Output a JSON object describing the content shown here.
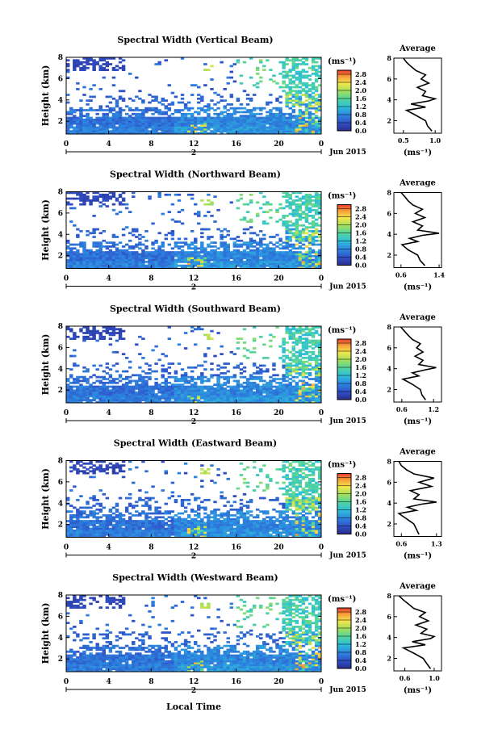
{
  "xlabel_bottom": "Local Time",
  "date_label": "Jun 2015",
  "colorbar": {
    "unit": "(ms⁻¹)",
    "ticks": [
      "0.0",
      "0.4",
      "0.8",
      "1.2",
      "1.6",
      "2.0",
      "2.4",
      "2.8"
    ],
    "range": [
      0,
      3.0
    ],
    "stops": [
      "#2a2d8c",
      "#2f52c8",
      "#2d86e0",
      "#2fc0d8",
      "#55d59a",
      "#a6e05a",
      "#f2e64a",
      "#f7a33b",
      "#e8392a"
    ]
  },
  "x_ticks": [
    "0",
    "4",
    "8",
    "12",
    "16",
    "20",
    "0"
  ],
  "x_sub_label": "2",
  "y_ticks": [
    "2",
    "4",
    "6",
    "8"
  ],
  "y_label": "Height (km)",
  "avg_title": "Average",
  "avg_unit": "(ms⁻¹)",
  "chart_data": [
    {
      "type": "heatmap",
      "title": "Spectral Width (Vertical Beam)",
      "xlim": [
        0,
        24
      ],
      "ylim": [
        0.8,
        8
      ],
      "profile": {
        "title": "Average",
        "xticks": [
          "0.5",
          "1.0"
        ],
        "xlim": [
          0.35,
          1.1
        ],
        "height": [
          1.0,
          1.5,
          2.0,
          2.5,
          3.0,
          3.3,
          3.6,
          3.9,
          4.1,
          4.4,
          4.8,
          5.2,
          5.6,
          6.0,
          6.4,
          6.8,
          7.2,
          7.6,
          8.0
        ],
        "value": [
          0.95,
          0.88,
          0.85,
          0.7,
          0.55,
          0.85,
          0.62,
          0.9,
          1.0,
          0.8,
          0.85,
          0.72,
          0.9,
          0.78,
          0.85,
          0.7,
          0.62,
          0.55,
          0.5
        ]
      }
    },
    {
      "type": "heatmap",
      "title": "Spectral Width (Northward Beam)",
      "xlim": [
        0,
        24
      ],
      "ylim": [
        0.8,
        8
      ],
      "profile": {
        "title": "Average",
        "xticks": [
          "0.6",
          "1.4"
        ],
        "xlim": [
          0.45,
          1.45
        ],
        "height": [
          1.0,
          1.5,
          2.0,
          2.5,
          3.0,
          3.3,
          3.6,
          3.9,
          4.1,
          4.4,
          4.8,
          5.2,
          5.6,
          6.0,
          6.4,
          6.8,
          7.2,
          7.6,
          8.0
        ],
        "value": [
          1.1,
          1.0,
          0.95,
          0.75,
          0.62,
          0.95,
          0.78,
          1.05,
          1.4,
          0.95,
          1.05,
          0.85,
          1.1,
          0.9,
          1.05,
          0.85,
          0.75,
          0.68,
          0.6
        ]
      }
    },
    {
      "type": "heatmap",
      "title": "Spectral Width (Southward Beam)",
      "xlim": [
        0,
        24
      ],
      "ylim": [
        0.8,
        8
      ],
      "profile": {
        "title": "Average",
        "xticks": [
          "0.6",
          "1.2"
        ],
        "xlim": [
          0.45,
          1.35
        ],
        "height": [
          1.0,
          1.5,
          2.0,
          2.5,
          3.0,
          3.3,
          3.6,
          3.9,
          4.1,
          4.4,
          4.8,
          5.2,
          5.6,
          6.0,
          6.4,
          6.8,
          7.2,
          7.6,
          8.0
        ],
        "value": [
          1.05,
          0.98,
          0.95,
          0.8,
          0.62,
          0.92,
          0.8,
          1.05,
          1.25,
          0.92,
          1.0,
          0.85,
          1.0,
          0.88,
          0.95,
          0.8,
          0.72,
          0.65,
          0.58
        ]
      }
    },
    {
      "type": "heatmap",
      "title": "Spectral Width (Eastward Beam)",
      "xlim": [
        0,
        24
      ],
      "ylim": [
        0.8,
        8
      ],
      "profile": {
        "title": "Average",
        "xticks": [
          "0.6",
          "1.3"
        ],
        "xlim": [
          0.45,
          1.4
        ],
        "height": [
          1.0,
          1.5,
          2.0,
          2.5,
          3.0,
          3.3,
          3.6,
          3.9,
          4.1,
          4.4,
          4.8,
          5.2,
          5.6,
          6.0,
          6.4,
          6.8,
          7.2,
          7.6,
          8.0
        ],
        "value": [
          0.95,
          0.9,
          0.85,
          0.7,
          0.55,
          0.9,
          0.72,
          1.0,
          1.3,
          0.85,
          0.95,
          0.78,
          1.2,
          0.95,
          1.25,
          0.85,
          0.7,
          0.6,
          0.55
        ]
      }
    },
    {
      "type": "heatmap",
      "title": "Spectral Width (Westward Beam)",
      "xlim": [
        0,
        24
      ],
      "ylim": [
        0.8,
        8
      ],
      "profile": {
        "title": "Average",
        "xticks": [
          "0.6",
          "1.0"
        ],
        "xlim": [
          0.45,
          1.1
        ],
        "height": [
          1.0,
          1.5,
          2.0,
          2.5,
          3.0,
          3.3,
          3.6,
          3.9,
          4.1,
          4.4,
          4.8,
          5.2,
          5.6,
          6.0,
          6.4,
          6.8,
          7.2,
          7.6,
          8.0
        ],
        "value": [
          0.95,
          0.9,
          0.85,
          0.72,
          0.58,
          0.88,
          0.7,
          0.95,
          1.0,
          0.82,
          0.9,
          0.75,
          0.92,
          0.8,
          0.88,
          0.72,
          0.65,
          0.58,
          0.52
        ]
      }
    }
  ]
}
